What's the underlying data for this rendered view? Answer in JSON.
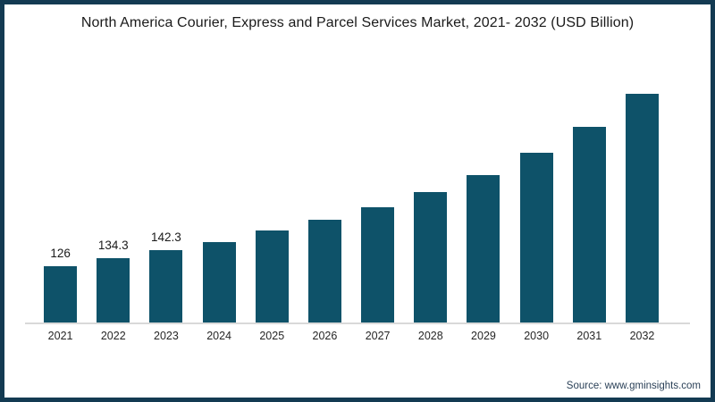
{
  "title": "North America Courier, Express and Parcel Services Market, 2021- 2032 (USD Billion)",
  "source": "Source: www.gminsights.com",
  "colors": {
    "bar": "#0e5269",
    "frame_border": "#133a52",
    "axis_line": "#d9d9d9",
    "title_text": "#1a1a1a",
    "tick_text": "#262626",
    "source_text": "#2b4158"
  },
  "chart_data": {
    "type": "bar",
    "title": "North America Courier, Express and Parcel Services Market, 2021- 2032 (USD Billion)",
    "categories": [
      "2021",
      "2022",
      "2023",
      "2024",
      "2025",
      "2026",
      "2027",
      "2028",
      "2029",
      "2030",
      "2031",
      "2032"
    ],
    "values": [
      126,
      134.3,
      142.3,
      151.2,
      162.6,
      173.6,
      186.5,
      202.4,
      219.9,
      243.0,
      269.7,
      303.8
    ],
    "data_labels": [
      "126",
      "134.3",
      "142.3",
      "",
      "",
      "",
      "",
      "",
      "",
      "",
      "",
      ""
    ],
    "xlabel": "",
    "ylabel": "",
    "ylim": [
      68,
      310
    ],
    "y_axis_visible": false,
    "grid": false,
    "legend": false,
    "note": "Only the 2021-2023 bars carry on-chart value labels; 2024-2032 values are estimated from bar heights."
  }
}
